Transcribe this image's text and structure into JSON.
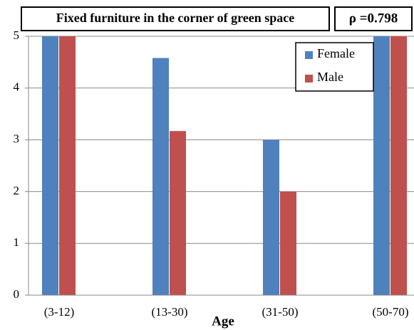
{
  "chart_data": {
    "type": "bar",
    "title": "Fixed furniture in the corner of green space",
    "annotation": "ρ =0.798",
    "x_label": "Age",
    "categories": [
      "(3-12)",
      "(13-30)",
      "(31-50)",
      "(50-70)"
    ],
    "series": [
      {
        "name": "Female",
        "color": "#4f81bd",
        "values": [
          5,
          4.58,
          3,
          5
        ]
      },
      {
        "name": "Male",
        "color": "#c0504d",
        "values": [
          5,
          3.17,
          2,
          5
        ]
      }
    ],
    "ylim": [
      0,
      5
    ],
    "yticks": [
      0,
      1,
      2,
      3,
      4,
      5
    ],
    "grid": true,
    "legend": "upper right"
  }
}
